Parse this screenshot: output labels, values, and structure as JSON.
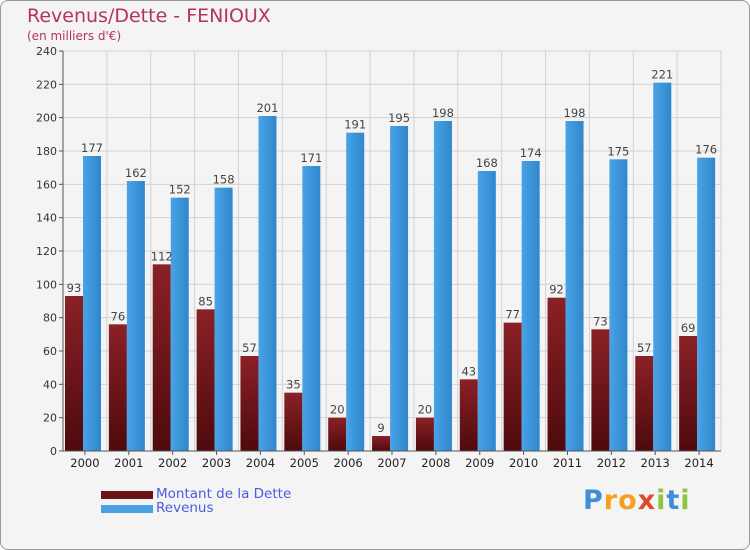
{
  "title": "Revenus/Dette - FENIOUX",
  "subtitle": "(en milliers d'€)",
  "logo": {
    "letters": [
      {
        "ch": "P",
        "color": "#3f8fd6"
      },
      {
        "ch": "r",
        "color": "#f5a021"
      },
      {
        "ch": "o",
        "color": "#f5a021"
      },
      {
        "ch": "x",
        "color": "#e04a2a"
      },
      {
        "ch": "i",
        "color": "#8cc63f"
      },
      {
        "ch": "t",
        "color": "#3f8fd6"
      },
      {
        "ch": "i",
        "color": "#8cc63f"
      }
    ]
  },
  "colors": {
    "dette": "#7d1a1e",
    "revenus": "#4aa0e2"
  },
  "chart_data": {
    "type": "bar",
    "title": "Revenus/Dette - FENIOUX",
    "subtitle": "(en milliers d'€)",
    "categories": [
      "2000",
      "2001",
      "2002",
      "2003",
      "2004",
      "2005",
      "2006",
      "2007",
      "2008",
      "2009",
      "2010",
      "2011",
      "2012",
      "2013",
      "2014"
    ],
    "series": [
      {
        "name": "Montant de la Dette",
        "values": [
          93,
          76,
          112,
          85,
          57,
          35,
          20,
          9,
          20,
          43,
          77,
          92,
          73,
          57,
          69
        ]
      },
      {
        "name": "Revenus",
        "values": [
          177,
          162,
          152,
          158,
          201,
          171,
          191,
          195,
          198,
          168,
          174,
          198,
          175,
          221,
          176
        ]
      }
    ],
    "ylim": [
      0,
      240
    ],
    "yticks": [
      0,
      20,
      40,
      60,
      80,
      100,
      120,
      140,
      160,
      180,
      200,
      220,
      240
    ],
    "grid": true,
    "legend_position": "bottom-left"
  }
}
